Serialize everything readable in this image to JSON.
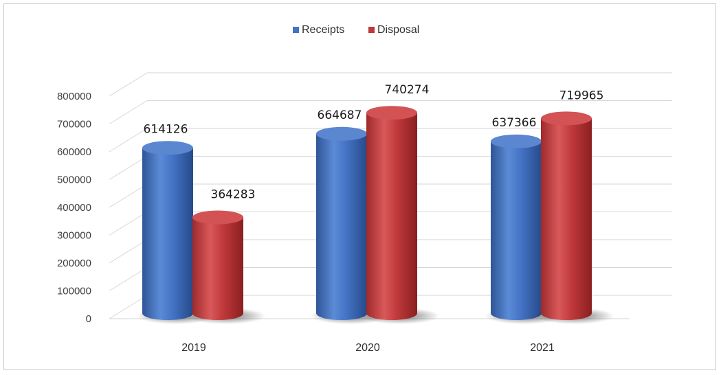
{
  "chart_data": {
    "type": "bar",
    "title": "",
    "xlabel": "",
    "ylabel": "",
    "categories": [
      "2019",
      "2020",
      "2021"
    ],
    "series": [
      {
        "name": "Receipts",
        "values": [
          614126,
          664687,
          637366
        ],
        "color": "#4472c4"
      },
      {
        "name": "Disposal",
        "values": [
          364283,
          740274,
          719965
        ],
        "color": "#c0393b"
      }
    ],
    "ylim": [
      0,
      800000
    ],
    "yticks": [
      "0",
      "100000",
      "200000",
      "300000",
      "400000",
      "500000",
      "600000",
      "700000",
      "800000"
    ],
    "data_labels": [
      [
        "614126",
        "664687",
        "637366"
      ],
      [
        "364283",
        "740274",
        "719965"
      ]
    ],
    "grid": true,
    "legend_position": "top-center",
    "style": "3d-cylinder"
  }
}
